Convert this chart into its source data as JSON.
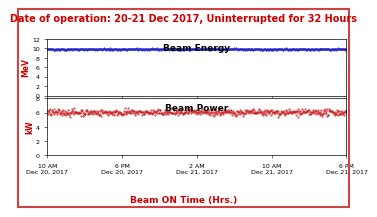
{
  "title": "Date of operation: 20-21 Dec 2017, Uninterrupted for 32 Hours",
  "title_color": "#cc0000",
  "title_fontsize": 7.0,
  "xlabel": "Beam ON Time (Hrs.)",
  "xlabel_color": "#cc0000",
  "xlabel_fontsize": 6.5,
  "x_tick_labels": [
    "10 AM\nDec 20, 2017",
    "6 PM\nDec 20, 2017",
    "2 AM\nDec 21, 2017",
    "10 AM\nDec 21, 2017",
    "6 PM\nDec 21, 2017"
  ],
  "x_tick_positions": [
    0,
    8,
    16,
    24,
    32
  ],
  "energy_label": "Beam Energy",
  "energy_ylabel": "MeV",
  "energy_mean": 9.8,
  "energy_noise": 0.07,
  "energy_ylim": [
    0,
    12
  ],
  "energy_yticks": [
    0,
    2,
    4,
    6,
    8,
    10,
    12
  ],
  "energy_color": "#2222cc",
  "power_label": "Beam Power",
  "power_ylabel": "kW",
  "power_mean": 6.05,
  "power_noise": 0.22,
  "power_ylim": [
    0,
    8
  ],
  "power_yticks": [
    0,
    2,
    4,
    6,
    8
  ],
  "power_color": "#cc2222",
  "n_points": 600,
  "xlim": [
    0,
    32
  ],
  "border_color": "#cc4444",
  "background_color": "#ffffff",
  "plot_bg_color": "#ffffff",
  "marker_size": 0.9,
  "linewidth": 0.4,
  "tick_labelsize": 4.5,
  "ylabel_fontsize": 5.5,
  "label_fontsize": 6.5
}
